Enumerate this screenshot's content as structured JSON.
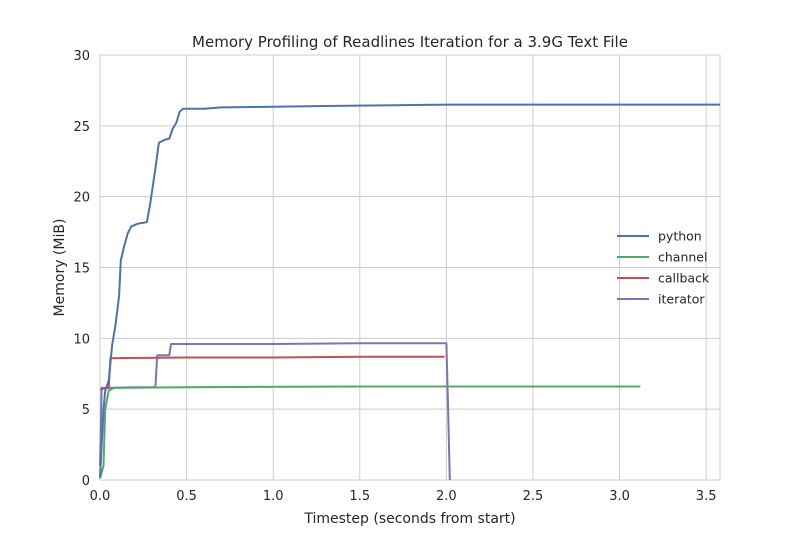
{
  "chart_data": {
    "type": "line",
    "title": "Memory Profiling of Readlines Iteration for a 3.9G Text File",
    "xlabel": "Timestep (seconds from start)",
    "ylabel": "Memory (MiB)",
    "xlim": [
      0,
      3.58
    ],
    "ylim": [
      0,
      30
    ],
    "xticks": [
      0.0,
      0.5,
      1.0,
      1.5,
      2.0,
      2.5,
      3.0,
      3.5
    ],
    "xtick_labels": [
      "0.0",
      "0.5",
      "1.0",
      "1.5",
      "2.0",
      "2.5",
      "3.0",
      "3.5"
    ],
    "yticks": [
      0,
      5,
      10,
      15,
      20,
      25,
      30
    ],
    "ytick_labels": [
      "0",
      "5",
      "10",
      "15",
      "20",
      "25",
      "30"
    ],
    "grid": true,
    "legend_position": "center-right",
    "series": [
      {
        "name": "python",
        "color": "#4c72b0",
        "points": [
          [
            0.0,
            0.2
          ],
          [
            0.02,
            5.0
          ],
          [
            0.03,
            6.3
          ],
          [
            0.05,
            7.0
          ],
          [
            0.07,
            9.5
          ],
          [
            0.09,
            11.0
          ],
          [
            0.11,
            13.0
          ],
          [
            0.12,
            15.5
          ],
          [
            0.14,
            16.5
          ],
          [
            0.16,
            17.4
          ],
          [
            0.18,
            17.9
          ],
          [
            0.22,
            18.1
          ],
          [
            0.27,
            18.2
          ],
          [
            0.29,
            19.5
          ],
          [
            0.32,
            22.0
          ],
          [
            0.34,
            23.8
          ],
          [
            0.37,
            24.0
          ],
          [
            0.4,
            24.1
          ],
          [
            0.42,
            24.8
          ],
          [
            0.44,
            25.2
          ],
          [
            0.46,
            26.0
          ],
          [
            0.48,
            26.2
          ],
          [
            0.6,
            26.2
          ],
          [
            0.7,
            26.3
          ],
          [
            1.0,
            26.35
          ],
          [
            1.3,
            26.4
          ],
          [
            1.7,
            26.45
          ],
          [
            2.0,
            26.5
          ],
          [
            2.5,
            26.5
          ],
          [
            3.58,
            26.5
          ]
        ]
      },
      {
        "name": "channel",
        "color": "#55a868",
        "points": [
          [
            0.0,
            0.1
          ],
          [
            0.02,
            1.0
          ],
          [
            0.03,
            5.0
          ],
          [
            0.05,
            6.3
          ],
          [
            0.08,
            6.5
          ],
          [
            0.5,
            6.55
          ],
          [
            1.5,
            6.6
          ],
          [
            2.5,
            6.6
          ],
          [
            3.12,
            6.6
          ]
        ]
      },
      {
        "name": "callback",
        "color": "#c44e52",
        "points": [
          [
            0.0,
            6.4
          ],
          [
            0.05,
            6.5
          ],
          [
            0.06,
            8.6
          ],
          [
            0.5,
            8.65
          ],
          [
            1.0,
            8.65
          ],
          [
            1.5,
            8.7
          ],
          [
            1.99,
            8.7
          ]
        ]
      },
      {
        "name": "iterator",
        "color": "#8172b2",
        "points": [
          [
            0.0,
            1.0
          ],
          [
            0.01,
            6.5
          ],
          [
            0.05,
            6.5
          ],
          [
            0.2,
            6.55
          ],
          [
            0.32,
            6.55
          ],
          [
            0.33,
            8.8
          ],
          [
            0.4,
            8.8
          ],
          [
            0.41,
            9.6
          ],
          [
            1.0,
            9.6
          ],
          [
            1.5,
            9.65
          ],
          [
            2.0,
            9.65
          ],
          [
            2.01,
            5.0
          ],
          [
            2.02,
            0.0
          ]
        ]
      }
    ]
  }
}
